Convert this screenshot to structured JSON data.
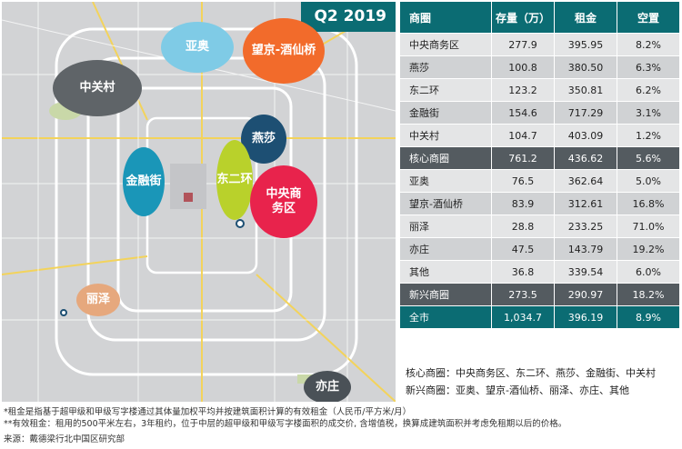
{
  "badge": "Q2 2019",
  "districts": [
    {
      "label": "亚奥",
      "color": "#7fcbe6"
    },
    {
      "label": "望京-酒仙桥",
      "color": "#f26b2b"
    },
    {
      "label": "中关村",
      "color": "#5f6468"
    },
    {
      "label": "燕莎",
      "color": "#1d4f73"
    },
    {
      "label": "东二环",
      "color": "#b9d12b"
    },
    {
      "label": "金融街",
      "color": "#1a96b8"
    },
    {
      "label": "中央商务区",
      "color": "#e8234c"
    },
    {
      "label": "丽泽",
      "color": "#e6a87d"
    },
    {
      "label": "亦庄",
      "color": "#4a5157"
    }
  ],
  "table": {
    "headers": [
      "商圈",
      "存量（万）",
      "租金",
      "空置"
    ],
    "rows": [
      {
        "name": "中央商务区",
        "stock": "277.9",
        "rent": "395.95",
        "vacancy": "8.2%",
        "style": "even"
      },
      {
        "name": "燕莎",
        "stock": "100.8",
        "rent": "380.50",
        "vacancy": "6.3%",
        "style": "odd"
      },
      {
        "name": "东二环",
        "stock": "123.2",
        "rent": "350.81",
        "vacancy": "6.2%",
        "style": "even"
      },
      {
        "name": "金融街",
        "stock": "154.6",
        "rent": "717.29",
        "vacancy": "3.1%",
        "style": "odd"
      },
      {
        "name": "中关村",
        "stock": "104.7",
        "rent": "403.09",
        "vacancy": "1.2%",
        "style": "even"
      },
      {
        "name": "核心商圈",
        "stock": "761.2",
        "rent": "436.62",
        "vacancy": "5.6%",
        "style": "dark"
      },
      {
        "name": "亚奥",
        "stock": "76.5",
        "rent": "362.64",
        "vacancy": "5.0%",
        "style": "even"
      },
      {
        "name": "望京-酒仙桥",
        "stock": "83.9",
        "rent": "312.61",
        "vacancy": "16.8%",
        "style": "odd"
      },
      {
        "name": "丽泽",
        "stock": "28.8",
        "rent": "233.25",
        "vacancy": "71.0%",
        "style": "even"
      },
      {
        "name": "亦庄",
        "stock": "47.5",
        "rent": "143.79",
        "vacancy": "19.2%",
        "style": "odd"
      },
      {
        "name": "其他",
        "stock": "36.8",
        "rent": "339.54",
        "vacancy": "6.0%",
        "style": "even"
      },
      {
        "name": "新兴商圈",
        "stock": "273.5",
        "rent": "290.97",
        "vacancy": "18.2%",
        "style": "dark"
      },
      {
        "name": "全市",
        "stock": "1,034.7",
        "rent": "396.19",
        "vacancy": "8.9%",
        "style": "teal"
      }
    ]
  },
  "legend": {
    "core": "核心商圈：中央商务区、东二环、燕莎、金融街、中关村",
    "emerging": "新兴商圈：亚奥、望京-酒仙桥、丽泽、亦庄、其他"
  },
  "notes": [
    "*租金是指基于超甲级和甲级写字楼通过其体量加权平均并按建筑面积计算的有效租金（人民币/平方米/月）",
    "**有效租金：租用的500平米左右，3年租约，位于中层的超甲级和甲级写字楼面积的成交价, 含增值税，换算成建筑面积并考虑免租期以后的价格。",
    "来源：戴德梁行北中国区研究部"
  ]
}
